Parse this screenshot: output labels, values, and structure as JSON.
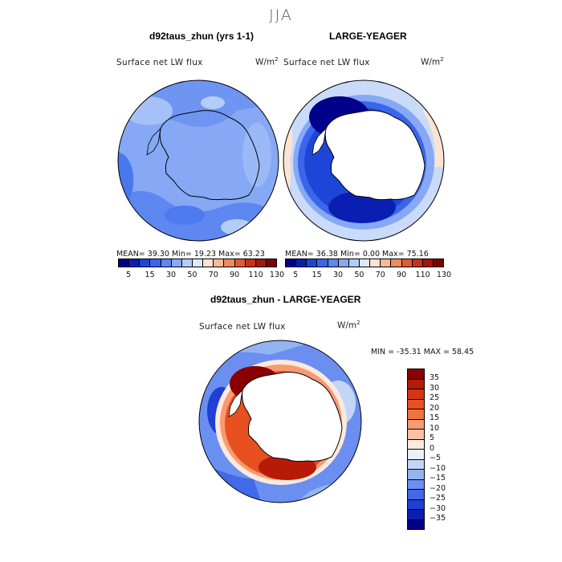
{
  "season": "JJA",
  "panels": [
    {
      "title": "d92taus_zhun (yrs 1-1)",
      "variable": "Surface net LW flux",
      "units": "W/m",
      "units_sup": "2",
      "stats": "MEAN=  39.30  Min=  19.23  Max=  63.23"
    },
    {
      "title": "LARGE-YEAGER",
      "variable": "Surface net LW flux",
      "units": "W/m",
      "units_sup": "2",
      "stats": "MEAN=  36.38  Min=   0.00  Max=  75.16"
    }
  ],
  "colorbar_top": {
    "labels": [
      "5",
      "15",
      "30",
      "50",
      "70",
      "90",
      "110",
      "130"
    ],
    "colors": [
      "#00008b",
      "#0a1fb2",
      "#1d46d8",
      "#3a66ec",
      "#5e87f2",
      "#86a8f5",
      "#b3cdf8",
      "#dde9fb",
      "#fde4d2",
      "#f8b99a",
      "#ef8a63",
      "#e35a33",
      "#c8321a",
      "#a31509",
      "#7b0000"
    ]
  },
  "difference": {
    "title": "d92taus_zhun - LARGE-YEAGER",
    "variable": "Surface net LW flux",
    "units": "W/m",
    "units_sup": "2",
    "minmax": "MIN = -35.31 MAX =  58.45",
    "legend": [
      {
        "label": "35",
        "color": "#8a0000"
      },
      {
        "label": "30",
        "color": "#b81a08"
      },
      {
        "label": "25",
        "color": "#d63414"
      },
      {
        "label": "20",
        "color": "#e8501f"
      },
      {
        "label": "15",
        "color": "#f27240"
      },
      {
        "label": "10",
        "color": "#f89a70"
      },
      {
        "label": "5",
        "color": "#fbc3a6"
      },
      {
        "label": "0",
        "color": "#fde9dd"
      },
      {
        "label": "-5",
        "color": "#e9f0fc"
      },
      {
        "label": "-10",
        "color": "#c3d6f7"
      },
      {
        "label": "-15",
        "color": "#94b3f2"
      },
      {
        "label": "-20",
        "color": "#6a8ff0"
      },
      {
        "label": "-25",
        "color": "#4169e8"
      },
      {
        "label": "-30",
        "color": "#1f3fd5"
      },
      {
        "label": "-35",
        "color": "#0b1eb0"
      },
      {
        "label": "",
        "color": "#00008b"
      }
    ]
  }
}
